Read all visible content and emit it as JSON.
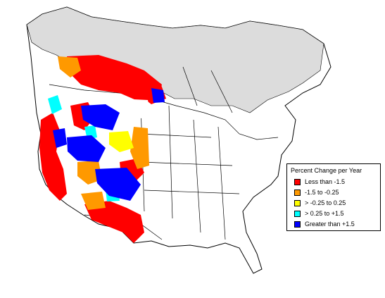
{
  "legend": {
    "title": "Percent Change per Year",
    "items": [
      {
        "label": "Less than -1.5",
        "color": "#ff0000"
      },
      {
        "label": "-1.5 to -0.25",
        "color": "#ff9900"
      },
      {
        "label": "> -0.25 to 0.25",
        "color": "#ffff00"
      },
      {
        "label": "> 0.25 to +1.5",
        "color": "#00ffff"
      },
      {
        "label": "Greater than +1.5",
        "color": "#0000ff"
      }
    ]
  },
  "colors": {
    "land": "#ffffff",
    "no_data": "#dcdcdc",
    "boundary": "#000000"
  }
}
